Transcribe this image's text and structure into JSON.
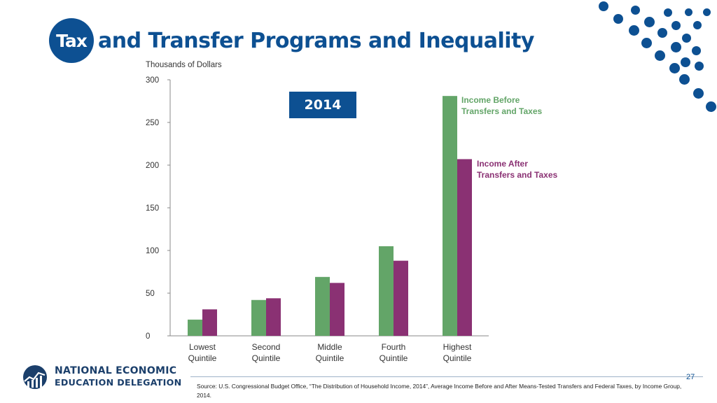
{
  "title": {
    "highlight": "Tax",
    "rest": "and Transfer Programs and Inequality"
  },
  "badge": {
    "year": "2014"
  },
  "chart_data": {
    "type": "bar",
    "title": "",
    "ylabel": "Thousands of Dollars",
    "xlabel": "",
    "ylim": [
      0,
      300
    ],
    "yticks": [
      0,
      50,
      100,
      150,
      200,
      250,
      300
    ],
    "categories": [
      [
        "Lowest",
        "Quintile"
      ],
      [
        "Second",
        "Quintile"
      ],
      [
        "Middle",
        "Quintile"
      ],
      [
        "Fourth",
        "Quintile"
      ],
      [
        "Highest",
        "Quintile"
      ]
    ],
    "series": [
      {
        "name": [
          "Income Before",
          "Transfers and Taxes"
        ],
        "color": "#63a568",
        "values": [
          19,
          42,
          69,
          105,
          281
        ]
      },
      {
        "name": [
          "Income After",
          "Transfers and Taxes"
        ],
        "color": "#8a3173",
        "values": [
          31,
          44,
          62,
          88,
          207
        ]
      }
    ],
    "legend": "inline-right",
    "grid": false
  },
  "footer": {
    "page_number": "27",
    "source": "Source: U.S. Congressional Budget Office, “The Distribution of Household Income, 2014”, Average Income Before and After Means-Tested Transfers and Federal Taxes, by Income Group, 2014.",
    "logo_line1": "NATIONAL ECONOMIC",
    "logo_line2": "EDUCATION DELEGATION"
  },
  "colors": {
    "brand": "#0d5092",
    "before": "#63a568",
    "after": "#8a3173",
    "axis_text": "#333333"
  }
}
